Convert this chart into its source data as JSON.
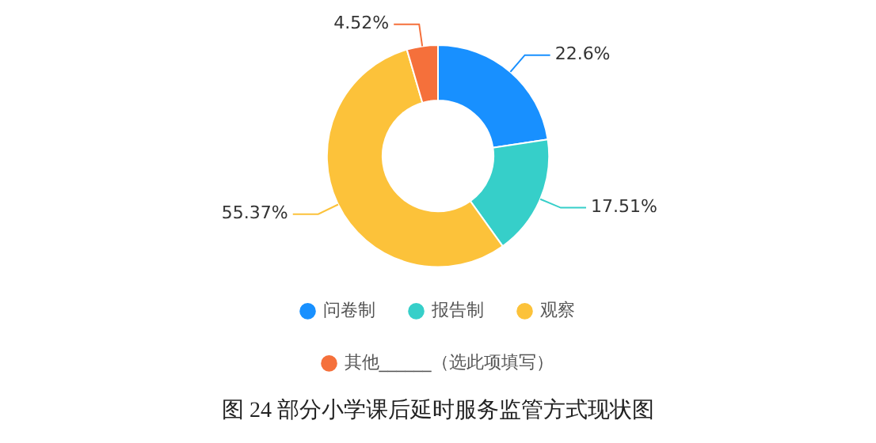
{
  "chart_data": {
    "type": "donut",
    "title": "图 24 部分小学课后延时服务监管方式现状图",
    "categories": [
      "问卷制",
      "报告制",
      "观察",
      "其他______（选此项填写）"
    ],
    "values": [
      22.6,
      17.51,
      55.37,
      4.52
    ],
    "value_labels": [
      "22.6%",
      "17.51%",
      "55.37%",
      "4.52%"
    ],
    "colors": [
      "#1890ff",
      "#36cfc9",
      "#fcc23a",
      "#f5703b"
    ],
    "legend": "bottom"
  }
}
